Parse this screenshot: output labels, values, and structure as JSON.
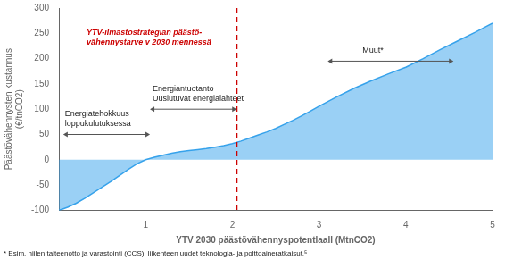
{
  "chart_data": {
    "type": "area",
    "xlabel": "YTV 2030 päästövähennyspotentlaall (MtnCO2)",
    "ylabel": "Päästövähennysten kustannus\n(€/tnCO2)",
    "footnote": "* Esim. hiilen talteenotto ja varastointi (CCS), liikenteen uudet teknologia- ja polttoaineratkaisut.⁵",
    "x": [
      0,
      0.05,
      0.1,
      0.2,
      0.3,
      0.4,
      0.5,
      0.6,
      0.7,
      0.8,
      0.9,
      1.0,
      1.1,
      1.2,
      1.3,
      1.4,
      1.5,
      1.6,
      1.7,
      1.8,
      1.9,
      2.0,
      2.1,
      2.2,
      2.3,
      2.4,
      2.5,
      2.6,
      2.7,
      2.8,
      2.9,
      3.0,
      3.2,
      3.4,
      3.6,
      3.8,
      4.0,
      4.2,
      4.4,
      4.6,
      4.8,
      5.0
    ],
    "values": [
      -100,
      -97,
      -94,
      -86,
      -76,
      -65,
      -54,
      -43,
      -31,
      -19,
      -8,
      0,
      5,
      9,
      13,
      16,
      18,
      20,
      22,
      25,
      28,
      32,
      37,
      43,
      49,
      55,
      62,
      70,
      78,
      87,
      96,
      106,
      124,
      141,
      156,
      170,
      183,
      200,
      218,
      235,
      252,
      270
    ],
    "xlim": [
      0,
      5
    ],
    "ylim": [
      -100,
      300
    ],
    "xticks": [
      1,
      2,
      3,
      4,
      5
    ],
    "yticks": [
      -100,
      -50,
      0,
      50,
      100,
      150,
      200,
      250,
      300
    ],
    "grid": false,
    "annotations": [
      {
        "type": "vline",
        "x": 2.05,
        "color": "#cc0000",
        "line_style": "dashed"
      },
      {
        "type": "text",
        "text": "YTV-ilmastostrategian päästö-\nvähennystarve v 2030 mennessä",
        "x": 0.32,
        "y": 260,
        "color": "#cc0000"
      },
      {
        "type": "arrow",
        "x": [
          0.05,
          1.05
        ],
        "y": 50
      },
      {
        "type": "text",
        "text": "Energiatehokkuus\nloppukulutuksessa",
        "x": 0.07,
        "y": 60
      },
      {
        "type": "arrow",
        "x": [
          1.05,
          2.05
        ],
        "y": 100
      },
      {
        "type": "text",
        "text": "Energiantuotanto\nUusiutuvat energialähteet",
        "x": 1.08,
        "y": 110
      },
      {
        "type": "arrow",
        "x": [
          3.1,
          4.55
        ],
        "y": 195
      },
      {
        "type": "text",
        "text": "Muut*",
        "x": 3.5,
        "y": 205
      }
    ]
  }
}
